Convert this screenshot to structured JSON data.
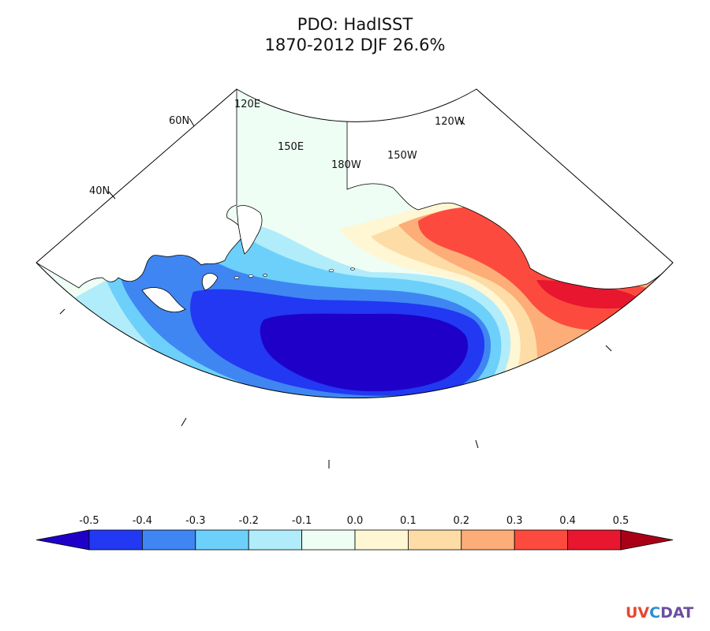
{
  "title": {
    "line1": "PDO: HadISST",
    "line2": "1870-2012 DJF 26.6%"
  },
  "map_labels": {
    "lat_40": "40N",
    "lat_60": "60N",
    "lon_120e": "120E",
    "lon_150e": "150E",
    "lon_180w": "180W",
    "lon_150w": "150W",
    "lon_120w": "120W"
  },
  "colorbar": {
    "ticks": [
      "-0.5",
      "-0.4",
      "-0.3",
      "-0.2",
      "-0.1",
      "0.0",
      "0.1",
      "0.2",
      "0.3",
      "0.4",
      "0.5"
    ],
    "colors": [
      "#1E00C8",
      "#2238F2",
      "#3F86F2",
      "#6CD0FA",
      "#B1ECFB",
      "#EEFEF5",
      "#FFF6D4",
      "#FEDCA6",
      "#FDAD78",
      "#FC4B3E",
      "#E8162E",
      "#A90018"
    ]
  },
  "logo": {
    "part1": "UV",
    "part2": "C",
    "part3": "DAT"
  }
}
